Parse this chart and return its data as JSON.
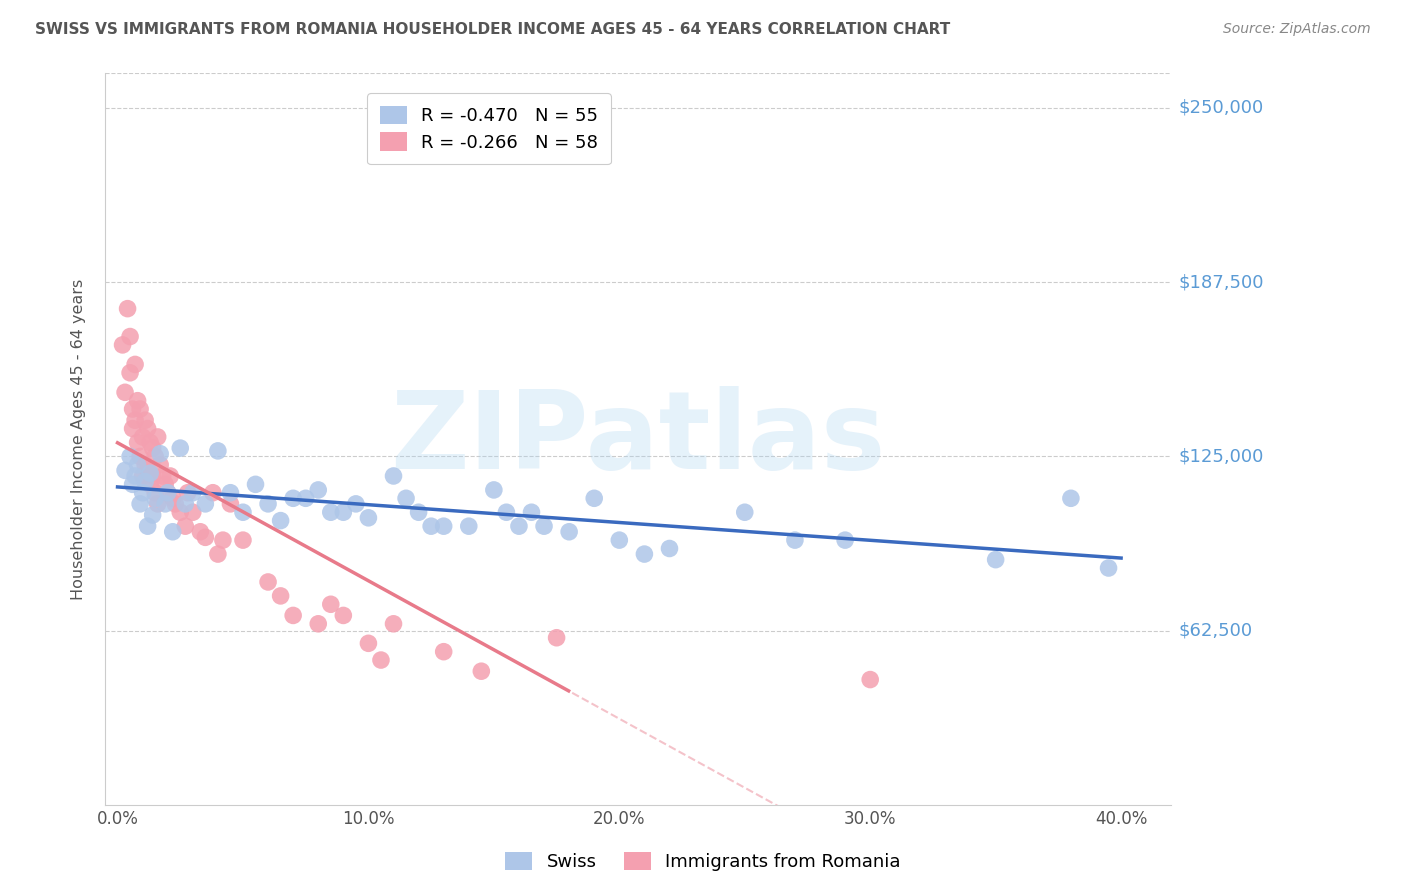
{
  "title": "SWISS VS IMMIGRANTS FROM ROMANIA HOUSEHOLDER INCOME AGES 45 - 64 YEARS CORRELATION CHART",
  "source": "Source: ZipAtlas.com",
  "ylabel": "Householder Income Ages 45 - 64 years",
  "xlabel_ticks": [
    "0.0%",
    "10.0%",
    "20.0%",
    "30.0%",
    "40.0%"
  ],
  "xlabel_vals": [
    0.0,
    0.1,
    0.2,
    0.3,
    0.4
  ],
  "ytick_labels": [
    "$62,500",
    "$125,000",
    "$187,500",
    "$250,000"
  ],
  "ytick_vals": [
    62500,
    125000,
    187500,
    250000
  ],
  "ylim": [
    0,
    262500
  ],
  "xlim": [
    -0.005,
    0.42
  ],
  "watermark": "ZIPatlas",
  "legend1_label": "R = -0.470   N = 55",
  "legend2_label": "R = -0.266   N = 58",
  "swiss_color": "#aec6e8",
  "romania_color": "#f4a0b0",
  "swiss_line_color": "#3a6abf",
  "romania_line_color": "#e87a8a",
  "title_color": "#555555",
  "source_color": "#888888",
  "ytick_color": "#5b9bd5",
  "xtick_color": "#555555",
  "grid_color": "#cccccc",
  "swiss_points_x": [
    0.003,
    0.005,
    0.006,
    0.007,
    0.008,
    0.009,
    0.01,
    0.011,
    0.012,
    0.013,
    0.014,
    0.015,
    0.017,
    0.019,
    0.02,
    0.022,
    0.025,
    0.027,
    0.03,
    0.035,
    0.04,
    0.045,
    0.05,
    0.055,
    0.06,
    0.065,
    0.07,
    0.075,
    0.08,
    0.085,
    0.09,
    0.095,
    0.1,
    0.11,
    0.115,
    0.12,
    0.125,
    0.13,
    0.14,
    0.15,
    0.155,
    0.16,
    0.165,
    0.17,
    0.18,
    0.19,
    0.2,
    0.21,
    0.22,
    0.25,
    0.27,
    0.29,
    0.35,
    0.38,
    0.395
  ],
  "swiss_points_y": [
    120000,
    125000,
    115000,
    118000,
    122000,
    108000,
    112000,
    116000,
    100000,
    119000,
    104000,
    110000,
    126000,
    108000,
    112000,
    98000,
    128000,
    108000,
    112000,
    108000,
    127000,
    112000,
    105000,
    115000,
    108000,
    102000,
    110000,
    110000,
    113000,
    105000,
    105000,
    108000,
    103000,
    118000,
    110000,
    105000,
    100000,
    100000,
    100000,
    113000,
    105000,
    100000,
    105000,
    100000,
    98000,
    110000,
    95000,
    90000,
    92000,
    105000,
    95000,
    95000,
    88000,
    110000,
    85000
  ],
  "romania_points_x": [
    0.002,
    0.003,
    0.004,
    0.005,
    0.005,
    0.006,
    0.006,
    0.007,
    0.007,
    0.008,
    0.008,
    0.009,
    0.009,
    0.01,
    0.01,
    0.011,
    0.011,
    0.012,
    0.012,
    0.013,
    0.013,
    0.014,
    0.014,
    0.015,
    0.015,
    0.016,
    0.016,
    0.017,
    0.018,
    0.019,
    0.02,
    0.021,
    0.022,
    0.023,
    0.025,
    0.027,
    0.028,
    0.03,
    0.033,
    0.035,
    0.038,
    0.04,
    0.042,
    0.045,
    0.05,
    0.06,
    0.065,
    0.07,
    0.08,
    0.085,
    0.09,
    0.1,
    0.105,
    0.11,
    0.13,
    0.145,
    0.175,
    0.3
  ],
  "romania_points_y": [
    165000,
    148000,
    178000,
    155000,
    168000,
    142000,
    135000,
    158000,
    138000,
    145000,
    130000,
    142000,
    125000,
    132000,
    118000,
    138000,
    122000,
    135000,
    120000,
    130000,
    115000,
    128000,
    118000,
    125000,
    112000,
    132000,
    108000,
    122000,
    118000,
    115000,
    112000,
    118000,
    110000,
    108000,
    105000,
    100000,
    112000,
    105000,
    98000,
    96000,
    112000,
    90000,
    95000,
    108000,
    95000,
    80000,
    75000,
    68000,
    65000,
    72000,
    68000,
    58000,
    52000,
    65000,
    55000,
    48000,
    60000,
    45000
  ],
  "romania_line_dashed_beyond": 0.18
}
